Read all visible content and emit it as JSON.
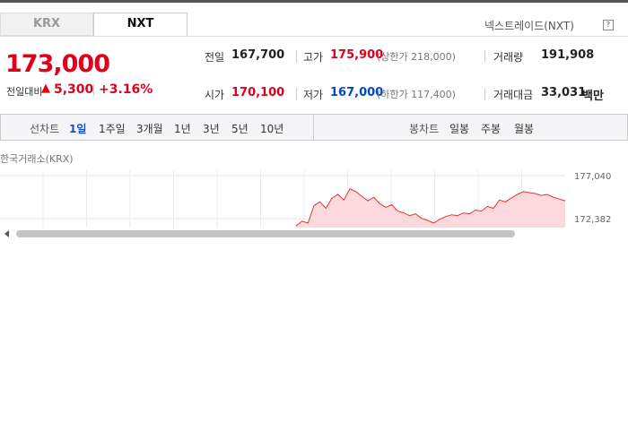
{
  "tabs": [
    "KRX",
    "NXT"
  ],
  "market_label": "넥스트레이드(NXT)",
  "help_icon": "?",
  "price": "173,000",
  "change": {
    "label": "전일대비",
    "arrow": "▲",
    "amount": "5,300",
    "rate": "+3.16%"
  },
  "stats": [
    [
      {
        "label": "전일",
        "value": "167,700"
      },
      {
        "label": "고가",
        "value": "175,900",
        "note": "(상한가 218,000)"
      },
      {
        "label": "거래량",
        "value": "191,908"
      }
    ],
    [
      {
        "label": "시가",
        "value": "170,100"
      },
      {
        "label": "저가",
        "value": "167,000",
        "note": "(하한가 117,400)"
      },
      {
        "label": "거래대금",
        "value": "33,031",
        "unit": "백만"
      }
    ]
  ],
  "line_chart": {
    "label": "선차트",
    "periods": [
      "1일",
      "1주일",
      "3개월",
      "1년",
      "3년",
      "5년",
      "10년"
    ]
  },
  "candle_chart": {
    "label": "봉차트",
    "periods": [
      "일봉",
      "주봉",
      "월봉"
    ]
  },
  "chart": {
    "source": "한국거래소(KRX)",
    "yticks": [
      {
        "value": 177040,
        "label": "177,040"
      },
      {
        "value": 172382,
        "label": "172,382"
      }
    ],
    "values": [
      171600,
      172100,
      171900,
      173800,
      174200,
      173500,
      174600,
      175000,
      174400,
      175600,
      175300,
      174800,
      174300,
      174700,
      174000,
      173600,
      173900,
      173200,
      173000,
      172700,
      172900,
      172400,
      172200,
      171900,
      172300,
      172600,
      172800,
      172700,
      173000,
      172900,
      173300,
      173200,
      173700,
      173500,
      174400,
      174200,
      174600,
      175000,
      175300,
      175200,
      175100,
      174900,
      175000,
      174700,
      174500,
      174300
    ]
  }
}
